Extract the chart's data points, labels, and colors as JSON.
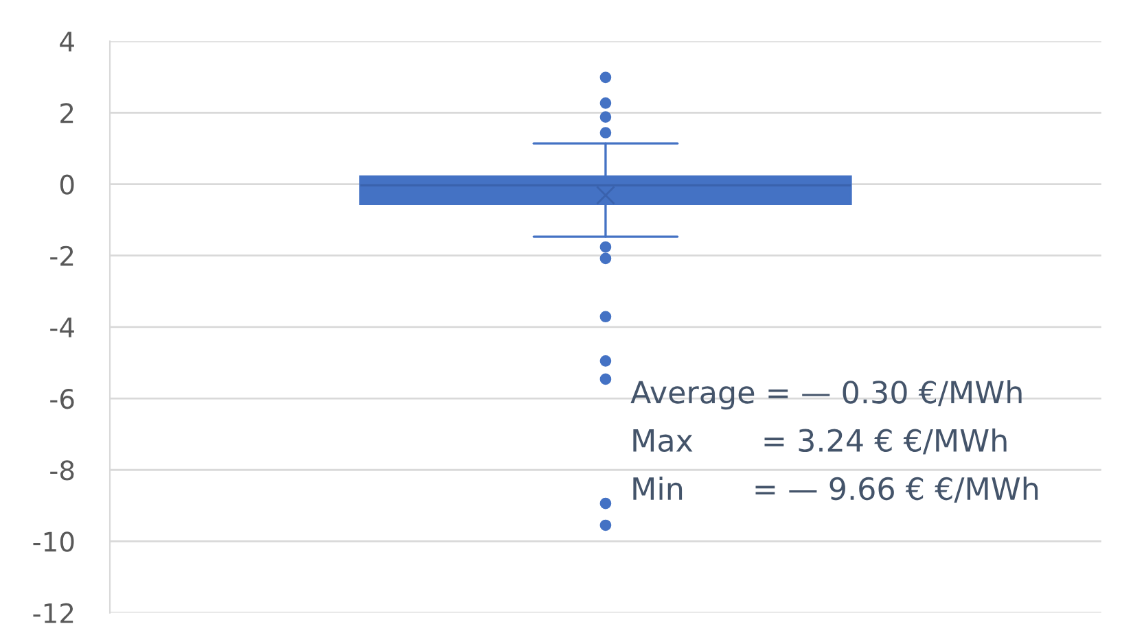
{
  "chart_data": {
    "type": "box",
    "categories": [
      null
    ],
    "color": "#4472c4",
    "boxes": [
      {
        "low": -1.47,
        "q1": -0.56,
        "median": -0.03,
        "q3": 0.22,
        "high": 1.14,
        "mean": -0.31,
        "outliers": [
          2.99,
          2.27,
          1.88,
          1.44,
          -1.76,
          -2.08,
          -3.71,
          -4.95,
          -5.46,
          -8.94,
          -9.55
        ]
      }
    ],
    "ylim": [
      -12,
      4
    ],
    "yticks": [
      4,
      2,
      0,
      -2,
      -4,
      -6,
      -8,
      -10,
      -12
    ],
    "grid": "y",
    "annotations": [
      "Average = — 0.30 €/MWh",
      "Max       = 3.24 € €/MWh",
      "Min       = — 9.66 € €/MWh"
    ]
  }
}
